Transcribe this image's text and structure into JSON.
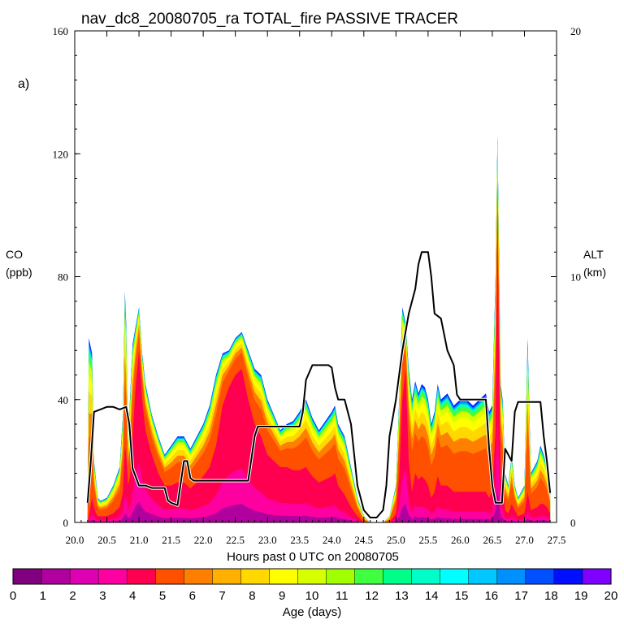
{
  "chart_data": {
    "type": "area",
    "title": "nav_dc8_20080705_ra TOTAL_fire PASSIVE TRACER",
    "panel_label": "a)",
    "xlabel": "Hours past 0 UTC on 20080705",
    "ylabel_line1": "CO",
    "ylabel_line2": "(ppb)",
    "y2label_line1": "ALT",
    "y2label_line2": "(km)",
    "xlim": [
      20.0,
      27.5
    ],
    "ylim": [
      0,
      160
    ],
    "y2lim": [
      0,
      20
    ],
    "x_ticks": [
      "20.0",
      "20.5",
      "21.0",
      "21.5",
      "22.0",
      "22.5",
      "23.0",
      "23.5",
      "24.0",
      "24.5",
      "25.0",
      "25.5",
      "26.0",
      "26.5",
      "27.0",
      "27.5"
    ],
    "y_ticks": [
      "0",
      "40",
      "80",
      "120",
      "160"
    ],
    "y2_ticks": [
      "0",
      "10",
      "20"
    ],
    "colorbar_label": "Age (days)",
    "colorbar_ticks": [
      "0",
      "1",
      "2",
      "3",
      "4",
      "5",
      "6",
      "7",
      "8",
      "9",
      "10",
      "11",
      "12",
      "13",
      "14",
      "15",
      "16",
      "17",
      "18",
      "19",
      "20"
    ],
    "colorbar_colors": [
      "#800080",
      "#b0009e",
      "#e000b4",
      "#ff00a0",
      "#ff0050",
      "#ff5000",
      "#ff8000",
      "#ffb000",
      "#ffd800",
      "#ffff00",
      "#d8ff00",
      "#a0ff00",
      "#40ff40",
      "#00ff88",
      "#00ffc8",
      "#00ffff",
      "#00c8ff",
      "#0090ff",
      "#0050ff",
      "#0010ff",
      "#8000ff"
    ],
    "series_co": {
      "x": [
        20.2,
        20.22,
        20.27,
        20.3,
        20.33,
        20.36,
        20.4,
        20.5,
        20.6,
        20.7,
        20.75,
        20.78,
        20.8,
        20.83,
        20.86,
        20.9,
        20.95,
        21.0,
        21.05,
        21.1,
        21.2,
        21.3,
        21.4,
        21.5,
        21.6,
        21.7,
        21.8,
        21.9,
        22.0,
        22.1,
        22.2,
        22.3,
        22.4,
        22.5,
        22.6,
        22.7,
        22.8,
        22.9,
        23.0,
        23.1,
        23.2,
        23.3,
        23.4,
        23.5,
        23.6,
        23.7,
        23.8,
        23.9,
        24.0,
        24.05,
        24.1,
        24.2,
        24.3,
        24.4,
        24.5,
        24.6,
        24.7,
        24.8,
        24.9,
        25.0,
        25.05,
        25.1,
        25.15,
        25.2,
        25.25,
        25.3,
        25.35,
        25.4,
        25.45,
        25.5,
        25.55,
        25.6,
        25.65,
        25.7,
        25.8,
        25.9,
        26.0,
        26.1,
        26.2,
        26.3,
        26.4,
        26.45,
        26.5,
        26.55,
        26.58,
        26.6,
        26.63,
        26.66,
        26.7,
        26.75,
        26.8,
        26.85,
        26.9,
        27.0,
        27.05,
        27.1,
        27.2,
        27.25,
        27.3,
        27.35,
        27.4
      ],
      "total": [
        2,
        60,
        55,
        20,
        14,
        8,
        7,
        8,
        12,
        18,
        35,
        75,
        65,
        25,
        40,
        58,
        64,
        70,
        55,
        45,
        35,
        28,
        22,
        25,
        28,
        28,
        24,
        28,
        32,
        38,
        48,
        55,
        56,
        60,
        62,
        56,
        50,
        48,
        40,
        35,
        30,
        32,
        33,
        36,
        40,
        34,
        30,
        33,
        36,
        38,
        32,
        28,
        18,
        8,
        2,
        0,
        0,
        0,
        2,
        12,
        40,
        70,
        65,
        50,
        40,
        46,
        42,
        45,
        44,
        40,
        32,
        36,
        45,
        40,
        42,
        38,
        40,
        40,
        38,
        40,
        42,
        36,
        38,
        80,
        126,
        96,
        45,
        40,
        16,
        12,
        22,
        12,
        8,
        12,
        60,
        16,
        20,
        25,
        22,
        18,
        10
      ],
      "fresh": [
        0,
        2,
        8,
        5,
        3,
        2,
        2,
        2,
        3,
        5,
        10,
        25,
        22,
        12,
        15,
        28,
        45,
        56,
        40,
        30,
        22,
        16,
        12,
        12,
        13,
        13,
        11,
        13,
        15,
        18,
        25,
        38,
        44,
        48,
        50,
        40,
        32,
        28,
        22,
        20,
        18,
        18,
        17,
        17,
        18,
        15,
        13,
        14,
        15,
        16,
        12,
        9,
        5,
        2,
        0,
        0,
        0,
        0,
        0,
        3,
        15,
        40,
        50,
        20,
        10,
        16,
        14,
        15,
        14,
        12,
        8,
        10,
        15,
        12,
        12,
        10,
        10,
        10,
        10,
        10,
        10,
        8,
        10,
        30,
        100,
        60,
        15,
        12,
        4,
        3,
        6,
        4,
        2,
        3,
        10,
        4,
        5,
        6,
        6,
        5,
        3
      ]
    },
    "series_alt_km": {
      "x": [
        20.2,
        20.25,
        20.3,
        20.4,
        20.5,
        20.6,
        20.7,
        20.8,
        20.85,
        20.9,
        21.0,
        21.05,
        21.1,
        21.2,
        21.4,
        21.45,
        21.5,
        21.6,
        21.7,
        21.75,
        21.8,
        21.85,
        22.0,
        22.5,
        22.6,
        22.7,
        22.8,
        22.85,
        22.9,
        22.95,
        23.0,
        23.4,
        23.5,
        23.55,
        23.6,
        23.7,
        23.8,
        23.9,
        23.95,
        24.0,
        24.05,
        24.1,
        24.2,
        24.3,
        24.4,
        24.5,
        24.6,
        24.7,
        24.8,
        24.85,
        24.9,
        25.0,
        25.1,
        25.2,
        25.3,
        25.35,
        25.4,
        25.45,
        25.5,
        25.55,
        25.6,
        25.7,
        25.8,
        25.9,
        25.95,
        26.0,
        26.2,
        26.35,
        26.4,
        26.45,
        26.5,
        26.55,
        26.6,
        26.65,
        26.7,
        26.8,
        26.85,
        26.9,
        26.95,
        27.0,
        27.05,
        27.25,
        27.3,
        27.35,
        27.4
      ],
      "y": [
        0.8,
        2.5,
        4.5,
        4.6,
        4.7,
        4.7,
        4.6,
        4.7,
        4.0,
        2.2,
        1.5,
        1.5,
        1.5,
        1.4,
        1.4,
        0.9,
        0.8,
        0.7,
        2.5,
        2.5,
        1.8,
        1.7,
        1.7,
        1.7,
        1.7,
        1.7,
        3.5,
        3.9,
        3.9,
        3.9,
        3.9,
        3.9,
        3.9,
        4.5,
        5.8,
        6.4,
        6.4,
        6.4,
        6.4,
        6.3,
        5.5,
        5.0,
        5.0,
        4.0,
        1.5,
        0.5,
        0.2,
        0.2,
        0.5,
        1.5,
        3.5,
        5.0,
        7.0,
        8.5,
        9.5,
        10.5,
        11.0,
        11.0,
        11.0,
        10.0,
        8.5,
        8.3,
        7.0,
        6.4,
        5.2,
        5.0,
        5.0,
        5.0,
        5.0,
        3.0,
        1.5,
        0.8,
        0.8,
        0.8,
        3.0,
        2.5,
        4.5,
        4.9,
        4.9,
        4.9,
        4.9,
        4.9,
        3.5,
        2.5,
        1.2
      ]
    }
  }
}
